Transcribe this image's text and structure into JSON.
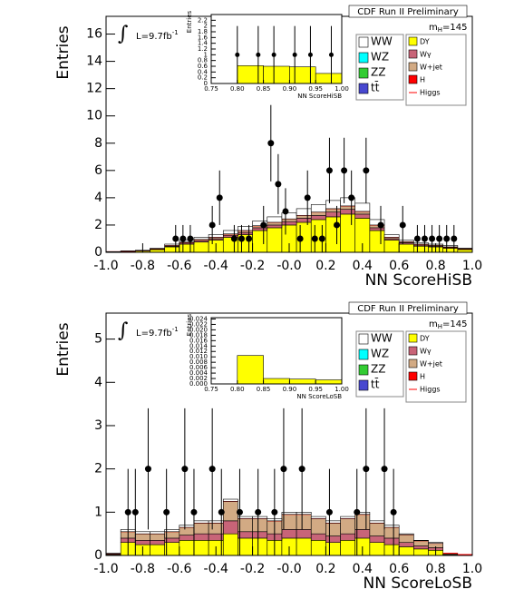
{
  "chart_data": [
    {
      "type": "stacked-histogram",
      "header": "CDF Run II Preliminary",
      "xlabel": "NN ScoreHiSB",
      "ylabel": "Entries",
      "mass_symbol": "m",
      "mass_subscript": "H",
      "mass_value": "=145",
      "lumi_symbol": "∫",
      "lumi_text": "L=9.7fb",
      "lumi_superscript": "-1",
      "xlim": [
        -1,
        1
      ],
      "ylim": [
        0,
        17.3
      ],
      "xticks": [
        {
          "value": -1,
          "label": "-1.0"
        },
        {
          "value": -0.8,
          "label": "-0.8"
        },
        {
          "value": -0.6,
          "label": "-0.6"
        },
        {
          "value": -0.4,
          "label": "-0.4"
        },
        {
          "value": -0.2,
          "label": "-0.2"
        },
        {
          "value": 0,
          "label": "-0.0"
        },
        {
          "value": 0.2,
          "label": "0.2"
        },
        {
          "value": 0.4,
          "label": "0.4"
        },
        {
          "value": 0.6,
          "label": "0.6"
        },
        {
          "value": 0.8,
          "label": "0.8"
        },
        {
          "value": 1,
          "label": "1.0"
        }
      ],
      "yticks": [
        0,
        2,
        4,
        6,
        8,
        10,
        12,
        14,
        16
      ],
      "bins": [
        -1,
        -0.92,
        -0.84,
        -0.76,
        -0.68,
        -0.6,
        -0.52,
        -0.44,
        -0.36,
        -0.28,
        -0.2,
        -0.12,
        -0.04,
        0.04,
        0.12,
        0.2,
        0.28,
        0.36,
        0.44,
        0.52,
        0.6,
        0.68,
        0.76,
        0.84,
        0.92,
        1
      ],
      "series": [
        {
          "name": "WW",
          "color": "#ffffff",
          "values": [
            0.01,
            0.02,
            0.02,
            0.05,
            0.1,
            0.15,
            0.15,
            0.2,
            0.25,
            0.3,
            0.35,
            0.4,
            0.45,
            0.5,
            0.55,
            0.6,
            0.6,
            0.6,
            0.4,
            0.2,
            0.12,
            0.1,
            0.08,
            0.1,
            0.04
          ]
        },
        {
          "name": "WZ",
          "color": "#00ffff",
          "values": [
            0,
            0,
            0,
            0,
            0,
            0,
            0,
            0,
            0,
            0,
            0,
            0,
            0,
            0,
            0,
            0,
            0,
            0,
            0,
            0,
            0,
            0,
            0,
            0,
            0
          ]
        },
        {
          "name": "ZZ",
          "color": "#33cc33",
          "values": [
            0,
            0,
            0,
            0,
            0,
            0,
            0,
            0,
            0,
            0,
            0,
            0,
            0,
            0,
            0,
            0,
            0,
            0,
            0,
            0,
            0,
            0,
            0,
            0,
            0
          ]
        },
        {
          "name": "tt̄",
          "color": "#4848d0",
          "values": [
            0,
            0,
            0,
            0,
            0,
            0,
            0,
            0,
            0,
            0,
            0,
            0,
            0,
            0,
            0,
            0,
            0,
            0,
            0,
            0,
            0,
            0,
            0,
            0,
            0
          ]
        },
        {
          "name": "DY",
          "color": "#ffff00",
          "values": [
            0.03,
            0.06,
            0.1,
            0.2,
            0.4,
            0.6,
            0.75,
            0.9,
            1.1,
            1.3,
            1.6,
            1.8,
            2.0,
            2.2,
            2.4,
            2.6,
            2.8,
            2.5,
            1.6,
            0.9,
            0.6,
            0.45,
            0.4,
            0.3,
            0.2
          ]
        },
        {
          "name": "Wγ",
          "color": "#c86478",
          "values": [
            0,
            0.01,
            0.01,
            0.02,
            0.05,
            0.08,
            0.1,
            0.1,
            0.15,
            0.15,
            0.2,
            0.2,
            0.25,
            0.3,
            0.3,
            0.35,
            0.35,
            0.3,
            0.2,
            0.1,
            0.1,
            0.08,
            0.06,
            0.05,
            0.03
          ]
        },
        {
          "name": "W+jet",
          "color": "#d2aa84",
          "values": [
            0.01,
            0.01,
            0.02,
            0.03,
            0.05,
            0.07,
            0.1,
            0.1,
            0.1,
            0.15,
            0.15,
            0.2,
            0.2,
            0.2,
            0.25,
            0.25,
            0.25,
            0.2,
            0.2,
            0.1,
            0.08,
            0.07,
            0.06,
            0.05,
            0.03
          ]
        },
        {
          "name": "H",
          "color": "#ff0000",
          "values": [
            0,
            0,
            0,
            0,
            0,
            0,
            0,
            0,
            0,
            0,
            0,
            0,
            0,
            0,
            0,
            0,
            0,
            0,
            0,
            0,
            0,
            0,
            0,
            0,
            0
          ]
        },
        {
          "name": "Higgs",
          "color": "#ff0000",
          "style": "line",
          "values": [
            0,
            0,
            0,
            0,
            0,
            0,
            0,
            0,
            0,
            0,
            0,
            0,
            0,
            0,
            0,
            0,
            0,
            0,
            0,
            0,
            0,
            0,
            0,
            0,
            0
          ]
        }
      ],
      "data": {
        "x": [
          -0.62,
          -0.58,
          -0.54,
          -0.42,
          -0.38,
          -0.3,
          -0.26,
          -0.22,
          -0.14,
          -0.1,
          -0.06,
          -0.02,
          0.06,
          0.1,
          0.14,
          0.18,
          0.22,
          0.26,
          0.3,
          0.34,
          0.42,
          0.5,
          0.62,
          0.7,
          0.74,
          0.78,
          0.82,
          0.86,
          0.9
        ],
        "values": [
          1,
          1,
          1,
          2,
          4,
          1,
          1,
          1,
          2,
          8,
          5,
          3,
          1,
          4,
          1,
          1,
          6,
          2,
          6,
          4,
          6,
          2,
          2,
          1,
          1,
          1,
          1,
          1,
          1
        ],
        "errors": [
          1,
          1,
          1,
          1.4,
          2,
          1,
          1,
          1,
          1.4,
          2.8,
          2.2,
          1.7,
          1,
          2,
          1,
          1,
          2.4,
          1.4,
          2.4,
          2,
          2.4,
          1.4,
          1.4,
          1,
          1,
          1,
          1,
          1,
          1
        ]
      }
    },
    {
      "type": "stacked-histogram",
      "header": "CDF Run II Preliminary",
      "xlabel": "NN ScoreLoSB",
      "ylabel": "Entries",
      "mass_symbol": "m",
      "mass_subscript": "H",
      "mass_value": "=145",
      "lumi_symbol": "∫",
      "lumi_text": "L=9.7fb",
      "lumi_superscript": "-1",
      "xlim": [
        -1,
        1
      ],
      "ylim": [
        0,
        5.6
      ],
      "xticks": [
        {
          "value": -1,
          "label": "-1.0"
        },
        {
          "value": -0.8,
          "label": "-0.8"
        },
        {
          "value": -0.6,
          "label": "-0.6"
        },
        {
          "value": -0.4,
          "label": "-0.4"
        },
        {
          "value": -0.2,
          "label": "-0.2"
        },
        {
          "value": 0,
          "label": "-0.0"
        },
        {
          "value": 0.2,
          "label": "0.2"
        },
        {
          "value": 0.4,
          "label": "0.4"
        },
        {
          "value": 0.6,
          "label": "0.6"
        },
        {
          "value": 0.8,
          "label": "0.8"
        },
        {
          "value": 1,
          "label": "1.0"
        }
      ],
      "yticks": [
        0,
        1,
        2,
        3,
        4,
        5
      ],
      "bins": [
        -1,
        -0.92,
        -0.84,
        -0.76,
        -0.68,
        -0.6,
        -0.52,
        -0.44,
        -0.36,
        -0.28,
        -0.2,
        -0.12,
        -0.04,
        0.04,
        0.12,
        0.2,
        0.28,
        0.36,
        0.44,
        0.52,
        0.6,
        0.68,
        0.76,
        0.84,
        0.92,
        1
      ],
      "series": [
        {
          "name": "WW",
          "color": "#ffffff",
          "values": [
            0.01,
            0.05,
            0.05,
            0.05,
            0.05,
            0.05,
            0.05,
            0.05,
            0.05,
            0.05,
            0.05,
            0.05,
            0.05,
            0.05,
            0.05,
            0.05,
            0.05,
            0.05,
            0.05,
            0.05,
            0.02,
            0.01,
            0.02,
            0,
            0
          ]
        },
        {
          "name": "WZ",
          "color": "#00ffff",
          "values": [
            0,
            0,
            0,
            0,
            0,
            0,
            0,
            0,
            0,
            0,
            0,
            0,
            0,
            0,
            0,
            0,
            0,
            0,
            0,
            0,
            0,
            0,
            0,
            0,
            0
          ]
        },
        {
          "name": "ZZ",
          "color": "#33cc33",
          "values": [
            0,
            0,
            0,
            0,
            0,
            0,
            0,
            0,
            0,
            0,
            0,
            0,
            0,
            0,
            0,
            0,
            0,
            0,
            0,
            0,
            0,
            0,
            0,
            0,
            0
          ]
        },
        {
          "name": "tt̄",
          "color": "#4848d0",
          "values": [
            0,
            0,
            0,
            0,
            0,
            0,
            0,
            0,
            0,
            0,
            0,
            0,
            0,
            0,
            0,
            0,
            0,
            0,
            0,
            0,
            0,
            0,
            0,
            0,
            0
          ]
        },
        {
          "name": "DY",
          "color": "#ffff00",
          "values": [
            0.02,
            0.3,
            0.25,
            0.25,
            0.3,
            0.35,
            0.35,
            0.35,
            0.5,
            0.4,
            0.4,
            0.35,
            0.4,
            0.4,
            0.35,
            0.3,
            0.35,
            0.4,
            0.3,
            0.25,
            0.2,
            0.15,
            0.12,
            0.02,
            0.01
          ]
        },
        {
          "name": "Wγ",
          "color": "#c86478",
          "values": [
            0.01,
            0.1,
            0.1,
            0.1,
            0.1,
            0.12,
            0.15,
            0.15,
            0.3,
            0.15,
            0.15,
            0.15,
            0.2,
            0.2,
            0.15,
            0.15,
            0.15,
            0.2,
            0.15,
            0.15,
            0.1,
            0.07,
            0.06,
            0.01,
            0
          ]
        },
        {
          "name": "W+jet",
          "color": "#d2aa84",
          "values": [
            0.01,
            0.15,
            0.15,
            0.15,
            0.15,
            0.18,
            0.25,
            0.25,
            0.45,
            0.3,
            0.3,
            0.3,
            0.35,
            0.35,
            0.35,
            0.3,
            0.35,
            0.35,
            0.3,
            0.25,
            0.18,
            0.12,
            0.1,
            0.02,
            0.01
          ]
        },
        {
          "name": "H",
          "color": "#ff0000",
          "values": [
            0,
            0,
            0,
            0,
            0,
            0,
            0,
            0,
            0,
            0,
            0,
            0,
            0,
            0,
            0,
            0,
            0,
            0,
            0,
            0,
            0,
            0,
            0,
            0,
            0
          ]
        },
        {
          "name": "Higgs",
          "color": "#ff0000",
          "style": "line",
          "values": [
            0,
            0,
            0,
            0,
            0,
            0,
            0,
            0,
            0,
            0,
            0,
            0,
            0,
            0,
            0,
            0,
            0,
            0,
            0,
            0,
            0,
            0,
            0,
            0,
            0
          ]
        }
      ],
      "data": {
        "x": [
          -0.88,
          -0.84,
          -0.77,
          -0.67,
          -0.57,
          -0.52,
          -0.42,
          -0.37,
          -0.27,
          -0.17,
          -0.08,
          -0.03,
          0.07,
          0.22,
          0.37,
          0.42,
          0.52,
          0.57
        ],
        "values": [
          1,
          1,
          2,
          1,
          2,
          1,
          2,
          1,
          1,
          1,
          1,
          2,
          2,
          1,
          1,
          2,
          2,
          1
        ],
        "errors": [
          1,
          1,
          1.4,
          1,
          1.4,
          1,
          1.4,
          1,
          1,
          1,
          1,
          1.4,
          1.4,
          1,
          1,
          1.4,
          1.4,
          1
        ]
      }
    },
    {
      "type": "stacked-histogram",
      "xlabel": "NN ScoreHiSB",
      "ylabel": "Entries",
      "xlim": [
        0.75,
        1
      ],
      "ylim": [
        0,
        2.4
      ],
      "xticks": [
        0.75,
        {
          "value": 0.8,
          "label": "0.80"
        },
        0.85,
        {
          "value": 0.9,
          "label": "0.90"
        },
        0.95,
        {
          "value": 1,
          "label": "1.00"
        }
      ],
      "yticks": [
        0,
        0.2,
        0.4,
        0.6,
        0.8,
        1,
        1.2,
        1.4,
        1.6,
        1.8,
        2,
        2.2
      ],
      "bins": [
        0.75,
        0.8,
        0.85,
        0.9,
        0.95,
        1
      ],
      "series": [
        {
          "color": "#ffff00",
          "values": [
            0,
            0.62,
            0.6,
            0.58,
            0.35
          ]
        }
      ],
      "data": {
        "x": [
          0.8,
          0.84,
          0.87,
          0.91,
          0.94,
          0.98
        ],
        "values": [
          1,
          1,
          1,
          1,
          1,
          1
        ],
        "errors": [
          1,
          1,
          1,
          1,
          1,
          1
        ]
      }
    },
    {
      "type": "stacked-histogram",
      "xlabel": "NN ScoreLoSB",
      "ylabel": "Entries",
      "xlim": [
        0.75,
        1
      ],
      "ylim": [
        0,
        0.0245
      ],
      "xticks": [
        0.75,
        {
          "value": 0.8,
          "label": "0.80"
        },
        0.85,
        {
          "value": 0.9,
          "label": "0.90"
        },
        0.95,
        {
          "value": 1,
          "label": "1.00"
        }
      ],
      "yticks": [
        {
          "value": 0,
          "label": "0.000"
        },
        {
          "value": 0.002,
          "label": "0.002"
        },
        {
          "value": 0.004,
          "label": "0.004"
        },
        {
          "value": 0.006,
          "label": "0.006"
        },
        {
          "value": 0.008,
          "label": "0.008"
        },
        {
          "value": 0.01,
          "label": "0.010"
        },
        {
          "value": 0.012,
          "label": "0.012"
        },
        {
          "value": 0.014,
          "label": "0.014"
        },
        {
          "value": 0.016,
          "label": "0.016"
        },
        {
          "value": 0.018,
          "label": "0.018"
        },
        {
          "value": 0.02,
          "label": "0.020"
        },
        {
          "value": 0.022,
          "label": "0.022"
        },
        {
          "value": 0.024,
          "label": "0.024"
        }
      ],
      "bins": [
        0.75,
        0.8,
        0.85,
        0.9,
        0.95,
        1
      ],
      "series": [
        {
          "color": "#ffff00",
          "values": [
            0,
            0.0105,
            0.002,
            0.0018,
            0.0015
          ]
        }
      ]
    }
  ]
}
